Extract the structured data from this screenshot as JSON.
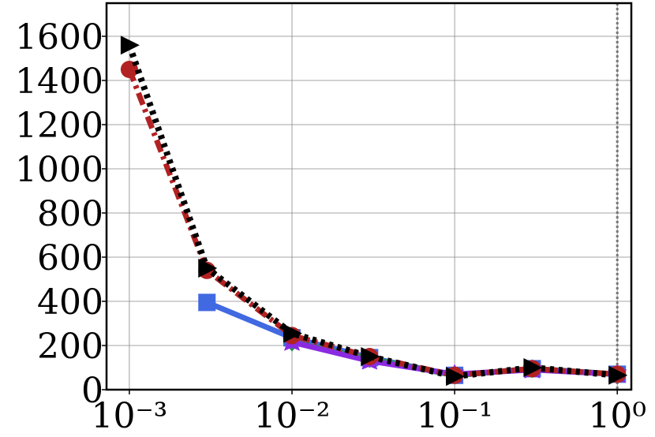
{
  "chart_data": {
    "type": "line",
    "xscale": "log",
    "grid": true,
    "xlim": [
      0.000724,
      1.22
    ],
    "ylim": [
      0,
      1750
    ],
    "xticks": [
      {
        "value": 0.001,
        "label": "10⁻³"
      },
      {
        "value": 0.01,
        "label": "10⁻²"
      },
      {
        "value": 0.1,
        "label": "10⁻¹"
      },
      {
        "value": 1,
        "label": "10⁰"
      }
    ],
    "yticks": [
      0,
      200,
      400,
      600,
      800,
      1000,
      1200,
      1400,
      1600
    ],
    "vline": 1,
    "series": [
      {
        "color": "#4169e1",
        "marker": "square",
        "linestyle": "solid",
        "x": [
          0.003,
          0.01,
          0.03,
          0.1,
          0.3,
          1
        ],
        "values": [
          395,
          235,
          145,
          65,
          95,
          70
        ]
      },
      {
        "color": "#2e8b57",
        "marker": "diamond",
        "linestyle": "solid",
        "x": [
          0.01,
          0.03,
          0.1,
          0.3,
          1
        ],
        "values": [
          215,
          140,
          65,
          95,
          70
        ]
      },
      {
        "color": "#8a2be2",
        "marker": "star",
        "linestyle": "solid",
        "x": [
          0.01,
          0.03,
          0.1,
          0.3,
          1
        ],
        "values": [
          215,
          130,
          70,
          90,
          70
        ]
      },
      {
        "color": "#b22222",
        "marker": "circle",
        "linestyle": "dashdot",
        "x": [
          0.001,
          0.003,
          0.01,
          0.03,
          0.1,
          0.3,
          1
        ],
        "values": [
          1450,
          540,
          245,
          150,
          65,
          95,
          70
        ]
      },
      {
        "color": "#000000",
        "marker": "triangle",
        "linestyle": "dotted",
        "x": [
          0.001,
          0.003,
          0.01,
          0.03,
          0.1,
          0.3,
          1
        ],
        "values": [
          1560,
          550,
          255,
          150,
          60,
          100,
          65
        ]
      }
    ]
  }
}
